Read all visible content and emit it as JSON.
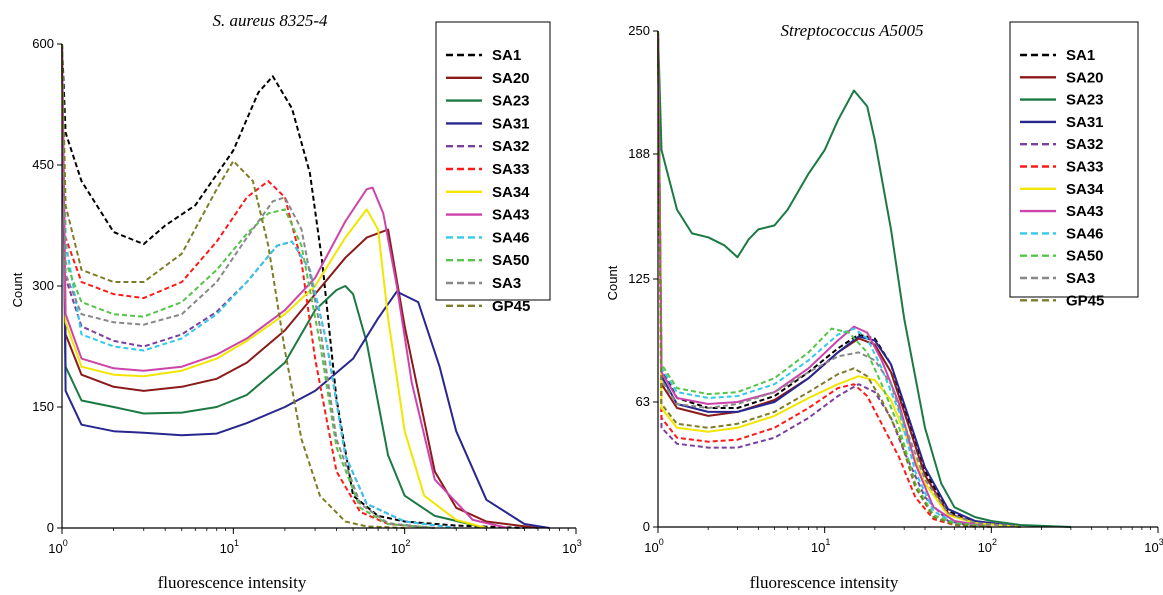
{
  "chart_data": [
    {
      "type": "line",
      "title": "S. aureus 8325-4",
      "xlabel": "fluorescence intensity",
      "ylabel": "Count",
      "xscale": "log",
      "xlim": [
        1,
        1000
      ],
      "ylim": [
        0,
        600
      ],
      "yticks": [
        "0",
        "150",
        "300",
        "450",
        "600"
      ],
      "xticks": [
        {
          "base": "10",
          "exp": "0"
        },
        {
          "base": "10",
          "exp": "1"
        },
        {
          "base": "10",
          "exp": "2"
        },
        {
          "base": "10",
          "exp": "3"
        }
      ],
      "grid": false,
      "legend_position": "top-right",
      "series": [
        {
          "name": "SA1",
          "color": "#000000",
          "dash": true,
          "x": [
            1.05,
            1.3,
            2,
            3,
            4,
            6,
            10,
            14,
            17,
            22,
            28,
            33,
            40,
            50,
            70,
            100,
            200,
            500
          ],
          "y": [
            490,
            430,
            367,
            352,
            375,
            400,
            468,
            540,
            560,
            520,
            440,
            330,
            160,
            40,
            15,
            8,
            3,
            0
          ]
        },
        {
          "name": "SA20",
          "color": "#8b1a1a",
          "dash": false,
          "x": [
            1.05,
            1.3,
            2,
            3,
            5,
            8,
            12,
            20,
            30,
            45,
            60,
            80,
            100,
            150,
            200,
            300,
            600
          ],
          "y": [
            240,
            190,
            175,
            170,
            175,
            185,
            205,
            245,
            290,
            335,
            360,
            370,
            250,
            70,
            25,
            8,
            0
          ]
        },
        {
          "name": "SA23",
          "color": "#1b7a44",
          "dash": false,
          "x": [
            1.05,
            1.3,
            2,
            3,
            5,
            8,
            12,
            20,
            30,
            40,
            45,
            50,
            60,
            80,
            100,
            150,
            300
          ],
          "y": [
            200,
            158,
            150,
            142,
            143,
            150,
            165,
            205,
            270,
            295,
            300,
            290,
            230,
            90,
            40,
            15,
            0
          ]
        },
        {
          "name": "SA31",
          "color": "#27278f",
          "dash": false,
          "x": [
            1.05,
            1.3,
            2,
            3,
            5,
            8,
            12,
            20,
            30,
            50,
            70,
            90,
            120,
            160,
            200,
            300,
            500,
            700
          ],
          "y": [
            170,
            128,
            120,
            118,
            115,
            117,
            130,
            150,
            170,
            210,
            260,
            293,
            280,
            200,
            120,
            35,
            5,
            0
          ]
        },
        {
          "name": "SA32",
          "color": "#7b3f9e",
          "dash": true,
          "x": [
            1.05,
            1.3,
            2,
            3,
            5,
            8,
            12,
            18,
            22,
            28,
            35,
            45,
            60,
            100,
            200
          ],
          "y": [
            310,
            250,
            232,
            225,
            240,
            268,
            305,
            350,
            355,
            320,
            230,
            90,
            30,
            8,
            0
          ]
        },
        {
          "name": "SA33",
          "color": "#ff1a1a",
          "dash": true,
          "x": [
            1.05,
            1.3,
            2,
            3,
            5,
            8,
            12,
            16,
            20,
            25,
            30,
            40,
            55,
            80,
            150
          ],
          "y": [
            360,
            305,
            290,
            285,
            305,
            355,
            410,
            430,
            410,
            330,
            210,
            70,
            20,
            5,
            0
          ]
        },
        {
          "name": "SA34",
          "color": "#f2e600",
          "dash": false,
          "x": [
            1.05,
            1.3,
            2,
            3,
            5,
            8,
            12,
            20,
            30,
            45,
            60,
            70,
            80,
            100,
            130,
            200,
            300
          ],
          "y": [
            255,
            200,
            190,
            188,
            195,
            210,
            232,
            265,
            300,
            360,
            395,
            370,
            260,
            120,
            40,
            10,
            0
          ]
        },
        {
          "name": "SA43",
          "color": "#cc44aa",
          "dash": false,
          "x": [
            1.05,
            1.3,
            2,
            3,
            5,
            8,
            12,
            20,
            30,
            45,
            60,
            65,
            75,
            90,
            110,
            150,
            250,
            400
          ],
          "y": [
            265,
            210,
            198,
            195,
            200,
            215,
            235,
            270,
            310,
            380,
            420,
            422,
            390,
            300,
            180,
            60,
            10,
            0
          ]
        },
        {
          "name": "SA46",
          "color": "#33c9e8",
          "dash": true,
          "x": [
            1.05,
            1.3,
            2,
            3,
            5,
            8,
            12,
            18,
            22,
            28,
            35,
            45,
            60,
            100,
            200
          ],
          "y": [
            355,
            240,
            225,
            220,
            235,
            265,
            305,
            350,
            355,
            320,
            230,
            90,
            30,
            8,
            0
          ]
        },
        {
          "name": "SA50",
          "color": "#55c44a",
          "dash": true,
          "x": [
            1.05,
            1.3,
            2,
            3,
            5,
            8,
            12,
            16,
            20,
            25,
            32,
            40,
            55,
            80,
            150
          ],
          "y": [
            330,
            280,
            265,
            262,
            280,
            320,
            365,
            390,
            395,
            350,
            230,
            100,
            25,
            5,
            0
          ]
        },
        {
          "name": "SA3",
          "color": "#888888",
          "dash": true,
          "x": [
            1.05,
            1.3,
            2,
            3,
            5,
            8,
            12,
            17,
            20,
            25,
            32,
            40,
            55,
            80,
            150
          ],
          "y": [
            315,
            265,
            255,
            252,
            265,
            305,
            360,
            405,
            410,
            370,
            250,
            110,
            30,
            6,
            0
          ]
        },
        {
          "name": "GP45",
          "color": "#7d7d28",
          "dash": true,
          "x": [
            1.05,
            1.3,
            2,
            3,
            5,
            8,
            10,
            13,
            16,
            20,
            25,
            32,
            45,
            60,
            100
          ],
          "y": [
            400,
            320,
            305,
            305,
            340,
            420,
            455,
            430,
            350,
            220,
            110,
            40,
            8,
            2,
            0
          ]
        }
      ]
    },
    {
      "type": "line",
      "title": "Streptococcus A5005",
      "xlabel": "fluorescence intensity",
      "ylabel": "Count",
      "xscale": "log",
      "xlim": [
        1,
        1000
      ],
      "ylim": [
        0,
        250
      ],
      "yticks": [
        "0",
        "63",
        "125",
        "188",
        "250"
      ],
      "xticks": [
        {
          "base": "10",
          "exp": "0"
        },
        {
          "base": "10",
          "exp": "1"
        },
        {
          "base": "10",
          "exp": "2"
        },
        {
          "base": "10",
          "exp": "3"
        }
      ],
      "grid": false,
      "legend_position": "top-right",
      "series": [
        {
          "name": "SA1",
          "color": "#000000",
          "dash": true,
          "x": [
            1.05,
            1.3,
            2,
            3,
            5,
            8,
            12,
            16,
            20,
            25,
            30,
            40,
            55,
            80,
            150
          ],
          "y": [
            80,
            65,
            60,
            60,
            66,
            78,
            90,
            97,
            95,
            82,
            60,
            28,
            8,
            2,
            0
          ]
        },
        {
          "name": "SA20",
          "color": "#8b1a1a",
          "dash": false,
          "x": [
            1.05,
            1.3,
            2,
            3,
            5,
            8,
            12,
            16,
            20,
            25,
            30,
            40,
            55,
            80,
            150
          ],
          "y": [
            72,
            60,
            56,
            58,
            64,
            75,
            88,
            95,
            92,
            78,
            58,
            26,
            7,
            2,
            0
          ]
        },
        {
          "name": "SA23",
          "color": "#1b7a44",
          "dash": false,
          "x": [
            1.05,
            1.3,
            1.6,
            2,
            2.5,
            3,
            3.5,
            4,
            5,
            6,
            8,
            10,
            12,
            15,
            18,
            20,
            25,
            30,
            40,
            50,
            60,
            80,
            100,
            150,
            300
          ],
          "y": [
            190,
            160,
            148,
            146,
            142,
            136,
            145,
            150,
            152,
            160,
            178,
            190,
            205,
            220,
            212,
            195,
            150,
            105,
            50,
            22,
            10,
            5,
            3,
            1,
            0
          ]
        },
        {
          "name": "SA31",
          "color": "#27278f",
          "dash": false,
          "x": [
            1.05,
            1.3,
            2,
            3,
            5,
            8,
            12,
            16,
            20,
            25,
            30,
            40,
            55,
            80,
            150
          ],
          "y": [
            76,
            62,
            58,
            58,
            63,
            75,
            88,
            96,
            94,
            82,
            62,
            30,
            9,
            3,
            0
          ]
        },
        {
          "name": "SA32",
          "color": "#7b3f9e",
          "dash": true,
          "x": [
            1.05,
            1.3,
            2,
            3,
            5,
            8,
            12,
            16,
            20,
            25,
            30,
            40,
            55,
            80
          ],
          "y": [
            50,
            42,
            40,
            40,
            45,
            55,
            66,
            72,
            68,
            55,
            38,
            15,
            3,
            0
          ]
        },
        {
          "name": "SA33",
          "color": "#ff1a1a",
          "dash": true,
          "x": [
            1.05,
            1.3,
            2,
            3,
            5,
            8,
            12,
            15,
            18,
            22,
            28,
            35,
            45,
            60,
            100
          ],
          "y": [
            55,
            45,
            43,
            44,
            50,
            60,
            70,
            72,
            66,
            52,
            35,
            15,
            4,
            1,
            0
          ]
        },
        {
          "name": "SA34",
          "color": "#f2e600",
          "dash": false,
          "x": [
            1.05,
            1.3,
            2,
            3,
            5,
            8,
            12,
            16,
            20,
            25,
            30,
            40,
            55,
            80,
            150
          ],
          "y": [
            60,
            50,
            48,
            50,
            56,
            65,
            72,
            76,
            74,
            64,
            48,
            22,
            6,
            2,
            0
          ]
        },
        {
          "name": "SA43",
          "color": "#cc44aa",
          "dash": false,
          "x": [
            1.05,
            1.3,
            2,
            3,
            5,
            8,
            12,
            15,
            18,
            22,
            28,
            35,
            45,
            60,
            100
          ],
          "y": [
            78,
            65,
            62,
            63,
            68,
            80,
            94,
            101,
            98,
            84,
            62,
            32,
            10,
            3,
            0
          ]
        },
        {
          "name": "SA46",
          "color": "#33c9e8",
          "dash": true,
          "x": [
            1.05,
            1.3,
            2,
            3,
            5,
            8,
            12,
            15,
            18,
            22,
            28,
            35,
            45,
            60,
            100
          ],
          "y": [
            80,
            68,
            65,
            66,
            72,
            84,
            97,
            100,
            95,
            80,
            58,
            28,
            8,
            2,
            0
          ]
        },
        {
          "name": "SA50",
          "color": "#55c44a",
          "dash": true,
          "x": [
            1.05,
            1.3,
            2,
            3,
            5,
            8,
            11,
            14,
            18,
            22,
            28,
            35,
            45,
            60,
            100
          ],
          "y": [
            82,
            70,
            67,
            68,
            75,
            88,
            100,
            98,
            88,
            72,
            50,
            22,
            6,
            2,
            0
          ]
        },
        {
          "name": "SA3",
          "color": "#888888",
          "dash": true,
          "x": [
            1.05,
            1.3,
            2,
            3,
            5,
            8,
            12,
            16,
            20,
            25,
            30,
            40,
            55,
            80,
            150
          ],
          "y": [
            74,
            62,
            60,
            62,
            68,
            78,
            86,
            88,
            84,
            72,
            52,
            24,
            7,
            2,
            0
          ]
        },
        {
          "name": "GP45",
          "color": "#7d7d28",
          "dash": true,
          "x": [
            1.05,
            1.3,
            2,
            3,
            5,
            8,
            12,
            15,
            18,
            22,
            28,
            35,
            45,
            60,
            100
          ],
          "y": [
            62,
            52,
            50,
            52,
            58,
            68,
            77,
            80,
            76,
            64,
            46,
            20,
            5,
            1,
            0
          ]
        }
      ]
    }
  ]
}
